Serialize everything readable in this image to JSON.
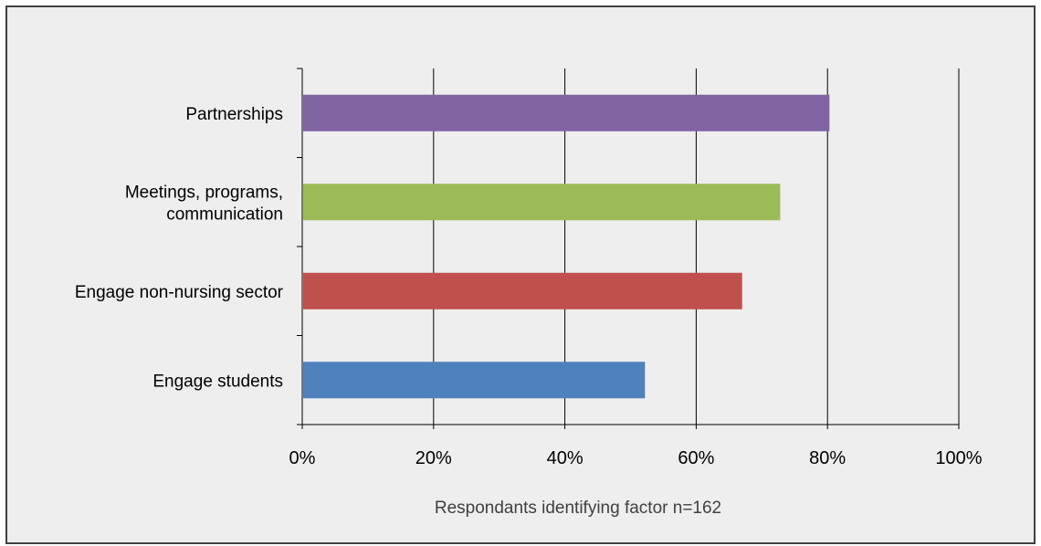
{
  "chart_data": {
    "type": "bar",
    "orientation": "horizontal",
    "categories": [
      [
        "Partnerships"
      ],
      [
        "Meetings, programs,",
        "communication"
      ],
      [
        "Engage non-nursing sector"
      ],
      [
        "Engage students"
      ]
    ],
    "values": [
      80.3,
      72.8,
      67.0,
      52.2
    ],
    "colors": [
      "#8064a2",
      "#9bbb59",
      "#c0504d",
      "#4f81bd"
    ],
    "x_ticks": [
      "0%",
      "20%",
      "40%",
      "60%",
      "80%",
      "100%"
    ],
    "xlim": [
      0,
      100
    ],
    "xlabel": "Respondants identifying factor n=162",
    "grid": "vertical major gridlines",
    "legend": "none"
  }
}
